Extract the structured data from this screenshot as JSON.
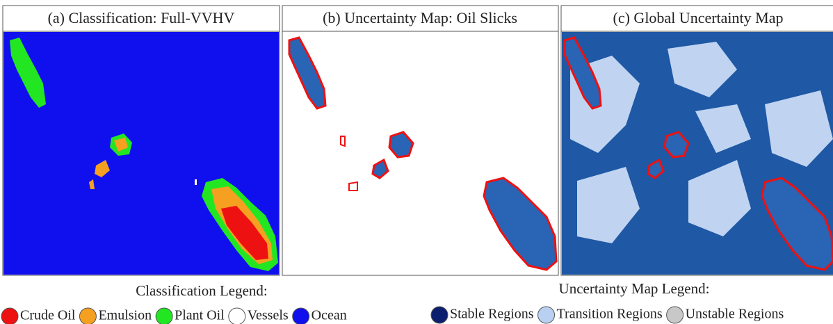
{
  "panels": [
    {
      "title": "(a)  Classification: Full-VVHV"
    },
    {
      "title": "(b) Uncertainty Map: Oil Slicks"
    },
    {
      "title": "(c) Global Uncertainty Map"
    }
  ],
  "legends": [
    {
      "title": "Classification Legend:",
      "items": [
        {
          "label": "Crude Oil",
          "color": "#ee1111"
        },
        {
          "label": "Emulsion",
          "color": "#f5a020"
        },
        {
          "label": "Plant Oil",
          "color": "#22e622"
        },
        {
          "label": "Vessels",
          "color": "#ffffff"
        },
        {
          "label": "Ocean",
          "color": "#1010ee"
        }
      ]
    },
    {
      "title": "Uncertainty Map Legend:",
      "items": [
        {
          "label": "Stable Regions",
          "color": "#0b1f6e"
        },
        {
          "label": "Transition Regions",
          "color": "#b8d0f2"
        },
        {
          "label": "Unstable Regions",
          "color": "#c8c8c8"
        }
      ]
    }
  ]
}
